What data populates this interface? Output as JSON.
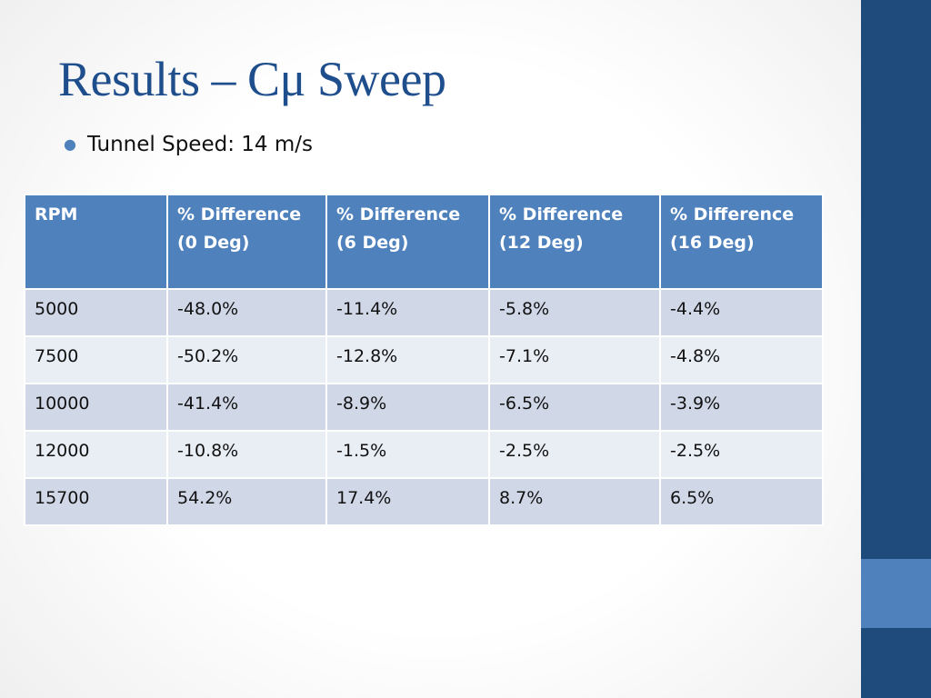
{
  "slide": {
    "title": "Results – Cμ Sweep",
    "bullets": [
      "Tunnel Speed: 14 m/s"
    ]
  },
  "table": {
    "headers": [
      {
        "line1": "RPM",
        "line2": ""
      },
      {
        "line1": "% Difference",
        "line2": "(0 Deg)"
      },
      {
        "line1": "% Difference",
        "line2": "(6 Deg)"
      },
      {
        "line1": "% Difference",
        "line2": "(12 Deg)"
      },
      {
        "line1": "% Difference",
        "line2": "(16 Deg)"
      }
    ],
    "rows": [
      [
        "5000",
        "-48.0%",
        "-11.4%",
        "-5.8%",
        "-4.4%"
      ],
      [
        "7500",
        "-50.2%",
        "-12.8%",
        "-7.1%",
        "-4.8%"
      ],
      [
        "10000",
        "-41.4%",
        "-8.9%",
        "-6.5%",
        "-3.9%"
      ],
      [
        "12000",
        "-10.8%",
        "-1.5%",
        "-2.5%",
        "-2.5%"
      ],
      [
        "15700",
        "54.2%",
        "17.4%",
        "8.7%",
        "6.5%"
      ]
    ]
  },
  "colors": {
    "title": "#1f4e8c",
    "bullet": "#4f81bd",
    "header_bg": "#4f81bd",
    "row_odd_bg": "#d0d8e8",
    "row_even_bg": "#e9edf4",
    "side_bar": "#1f4a7c",
    "side_bar_accent": "#4f81bd"
  }
}
